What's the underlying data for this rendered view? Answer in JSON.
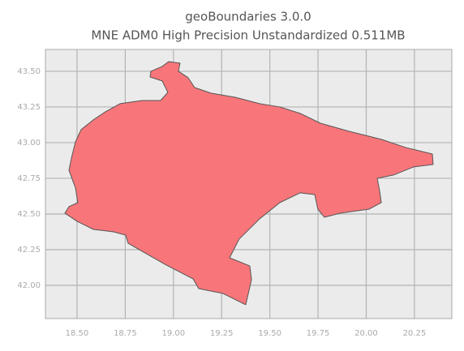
{
  "chart_data": {
    "type": "map",
    "title": "geoBoundaries 3.0.0",
    "subtitle": "MNE ADM0 High Precision Unstandardized 0.511MB",
    "x": [
      18.492,
      18.521,
      18.584,
      18.647,
      18.723,
      18.837,
      18.933,
      18.971,
      18.942,
      18.879,
      18.883,
      18.942,
      18.975,
      19.034,
      19.026,
      19.076,
      19.11,
      19.194,
      19.32,
      19.447,
      19.552,
      19.657,
      19.762,
      19.909,
      20.078,
      20.204,
      20.343,
      20.347,
      20.246,
      20.141,
      20.057,
      20.069,
      20.078,
      20.015,
      19.867,
      19.783,
      19.749,
      19.733,
      19.657,
      19.552,
      19.447,
      19.341,
      19.291,
      19.396,
      19.405,
      19.375,
      19.257,
      19.131,
      19.102,
      18.963,
      18.837,
      18.765,
      18.752,
      18.689,
      18.584,
      18.5,
      18.437,
      18.458,
      18.504,
      18.492,
      18.458,
      18.471
    ],
    "values": [
      43.006,
      43.091,
      43.159,
      43.216,
      43.273,
      43.295,
      43.295,
      43.352,
      43.432,
      43.46,
      43.5,
      43.534,
      43.568,
      43.557,
      43.5,
      43.455,
      43.386,
      43.347,
      43.318,
      43.273,
      43.25,
      43.205,
      43.136,
      43.08,
      43.023,
      42.966,
      42.92,
      42.847,
      42.83,
      42.773,
      42.75,
      42.665,
      42.58,
      42.534,
      42.506,
      42.477,
      42.534,
      42.636,
      42.648,
      42.58,
      42.466,
      42.324,
      42.193,
      42.136,
      42.04,
      41.864,
      41.943,
      41.977,
      42.045,
      42.142,
      42.239,
      42.295,
      42.352,
      42.375,
      42.392,
      42.449,
      42.506,
      42.551,
      42.58,
      42.682,
      42.807,
      42.892
    ],
    "color": "#f8767a",
    "edgecolor": "#555555",
    "xlim": [
      18.336,
      20.444
    ],
    "xticks": [
      {
        "value": 18.5,
        "label": "18.50"
      },
      18.75,
      {
        "value": 19.0,
        "label": "19.00"
      },
      19.25,
      {
        "value": 19.5,
        "label": "19.50"
      },
      19.75,
      {
        "value": 20.0,
        "label": "20.00"
      },
      20.25
    ],
    "ylim": [
      41.767,
      43.653
    ],
    "yticks": [
      {
        "value": 42.0,
        "label": "42.00"
      },
      42.25,
      {
        "value": 42.5,
        "label": "42.50"
      },
      42.75,
      {
        "value": 43.0,
        "label": "43.00"
      },
      43.25,
      {
        "value": 43.5,
        "label": "43.50"
      }
    ],
    "grid": true
  }
}
